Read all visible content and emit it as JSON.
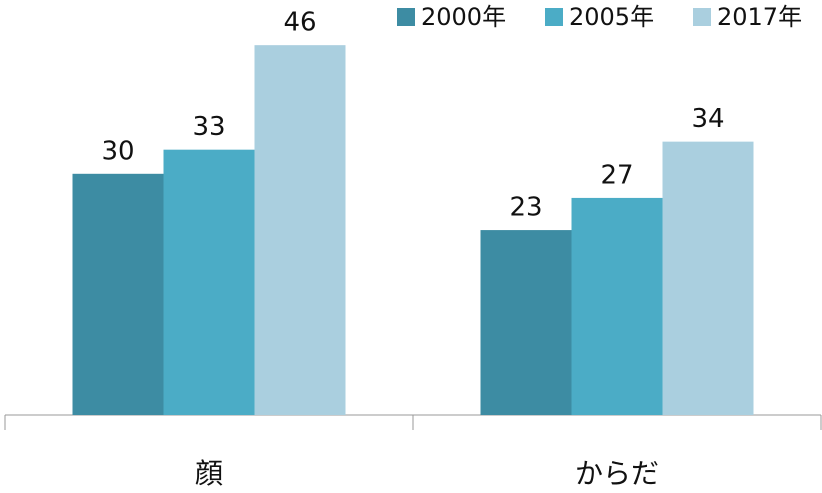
{
  "chart_data": {
    "type": "bar",
    "categories": [
      "顔",
      "からだ"
    ],
    "series": [
      {
        "name": "2000年",
        "color": "#3d8ca3",
        "values": [
          30,
          23
        ]
      },
      {
        "name": "2005年",
        "color": "#4bacc6",
        "values": [
          33,
          27
        ]
      },
      {
        "name": "2017年",
        "color": "#aacfdf",
        "values": [
          46,
          34
        ]
      }
    ],
    "legend": "top-right"
  }
}
